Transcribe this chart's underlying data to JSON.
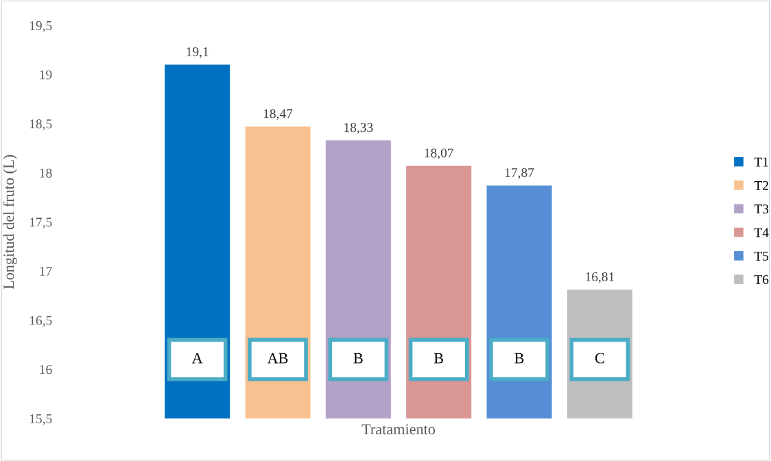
{
  "chart_data": {
    "type": "bar",
    "xlabel": "Tratamiento",
    "ylabel": "Longitud del fruto (L)",
    "categories": [
      null
    ],
    "series": [
      {
        "name": "T1",
        "color": "#0070c0",
        "values": [
          19.1
        ],
        "value_labels": [
          "19,1"
        ]
      },
      {
        "name": "T2",
        "color": "#f8c190",
        "values": [
          18.47
        ],
        "value_labels": [
          "18,47"
        ]
      },
      {
        "name": "T3",
        "color": "#b2a2c8",
        "values": [
          18.33
        ],
        "value_labels": [
          "18,33"
        ]
      },
      {
        "name": "T4",
        "color": "#d99694",
        "values": [
          18.07
        ],
        "value_labels": [
          "18,07"
        ]
      },
      {
        "name": "T5",
        "color": "#558ed5",
        "values": [
          17.87
        ],
        "value_labels": [
          "17,87"
        ]
      },
      {
        "name": "T6",
        "color": "#bfbfbf",
        "values": [
          16.81
        ],
        "value_labels": [
          "16,81"
        ]
      }
    ],
    "ylim": [
      15.5,
      19.5
    ],
    "yticks": [
      {
        "value": 15.5,
        "label": "15,5"
      },
      {
        "value": 16,
        "label": "16"
      },
      {
        "value": 16.5,
        "label": "16,5"
      },
      {
        "value": 17,
        "label": "17"
      },
      {
        "value": 17.5,
        "label": "17,5"
      },
      {
        "value": 18,
        "label": "18"
      },
      {
        "value": 18.5,
        "label": "18,5"
      },
      {
        "value": 19,
        "label": "19"
      },
      {
        "value": 19.5,
        "label": "19,5"
      }
    ],
    "annotations": [
      "A",
      "AB",
      "B",
      "B",
      "B",
      "C"
    ],
    "grid": false,
    "legend": "right"
  }
}
